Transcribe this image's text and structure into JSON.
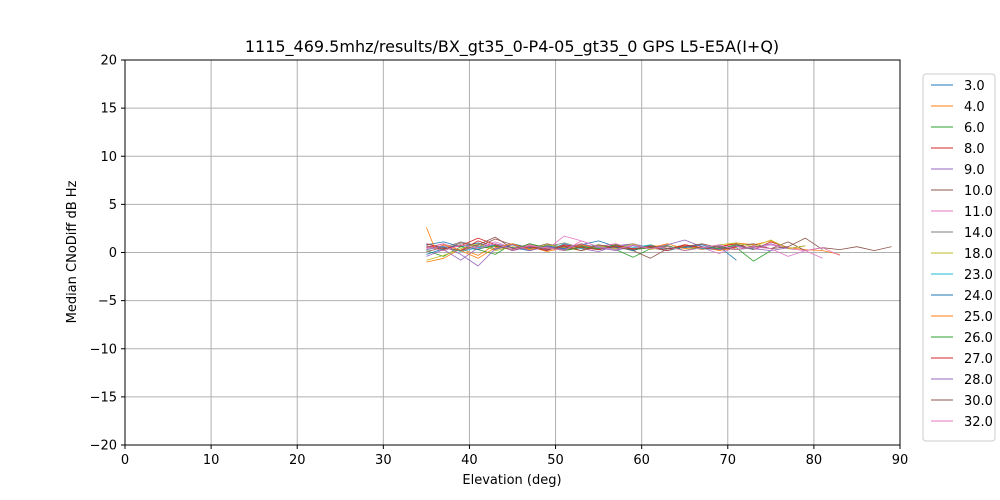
{
  "chart_data": {
    "type": "line",
    "title": "1115_469.5mhz/results/BX_gt35_0-P4-05_gt35_0 GPS L5-E5A(I+Q)",
    "xlabel": "Elevation (deg)",
    "ylabel": "Median CNoDiff dB Hz",
    "xlim": [
      0,
      90
    ],
    "ylim": [
      -20,
      20
    ],
    "xticks": [
      0,
      10,
      20,
      30,
      40,
      50,
      60,
      70,
      80,
      90
    ],
    "yticks": [
      20,
      15,
      10,
      5,
      0,
      -5,
      -10,
      -15,
      -20
    ],
    "grid": true,
    "legend_position": "right",
    "series": [
      {
        "name": "3.0",
        "color": "#1f77b4",
        "x": [
          35,
          37,
          39,
          41,
          43,
          45,
          47,
          49,
          51,
          53,
          55,
          57,
          59,
          61,
          63,
          65,
          67,
          69,
          71
        ],
        "y": [
          0.8,
          1.1,
          0.6,
          1.0,
          0.4,
          0.9,
          0.5,
          0.7,
          0.3,
          0.8,
          1.2,
          0.6,
          0.9,
          0.4,
          0.7,
          0.2,
          0.5,
          0.6,
          -0.8
        ]
      },
      {
        "name": "4.0",
        "color": "#ff7f0e",
        "x": [
          35,
          37,
          39,
          41,
          43,
          45,
          47,
          49,
          51,
          53,
          55,
          57,
          59,
          61,
          63,
          65,
          67,
          69,
          71,
          73,
          75,
          77,
          79,
          81,
          83
        ],
        "y": [
          -1.0,
          -0.6,
          0.4,
          -0.3,
          0.8,
          0.2,
          0.6,
          0.1,
          0.5,
          0.9,
          0.3,
          0.6,
          0.2,
          0.8,
          0.4,
          0.7,
          0.3,
          0.6,
          1.0,
          0.8,
          1.2,
          0.5,
          0.3,
          0.2,
          -0.2
        ]
      },
      {
        "name": "6.0",
        "color": "#2ca02c",
        "x": [
          35,
          37,
          39,
          41,
          43,
          45,
          47,
          49,
          51,
          53,
          55,
          57,
          59,
          61,
          63,
          65,
          67,
          69,
          71,
          73,
          75
        ],
        "y": [
          0.2,
          -0.4,
          0.6,
          0.3,
          -0.2,
          0.9,
          0.4,
          0.7,
          0.2,
          0.5,
          0.8,
          0.3,
          -0.5,
          0.4,
          0.7,
          0.2,
          0.6,
          0.3,
          0.5,
          -0.9,
          0.2
        ]
      },
      {
        "name": "8.0",
        "color": "#d62728",
        "x": [
          35,
          37,
          39,
          41,
          43,
          45,
          47,
          49,
          51,
          53,
          55,
          57,
          59,
          61,
          63,
          65,
          67,
          69,
          71,
          73,
          75,
          77
        ],
        "y": [
          0.5,
          0.9,
          0.2,
          1.2,
          0.6,
          0.3,
          0.9,
          0.4,
          0.7,
          0.2,
          0.6,
          0.9,
          0.3,
          0.5,
          0.2,
          0.8,
          0.4,
          0.6,
          0.9,
          0.3,
          1.1,
          0.5
        ]
      },
      {
        "name": "9.0",
        "color": "#9467bd",
        "x": [
          35,
          37,
          39,
          41,
          43,
          45,
          47,
          49,
          51,
          53,
          55,
          57,
          59,
          61,
          63,
          65,
          67,
          69,
          71,
          73,
          75,
          77,
          79
        ],
        "y": [
          -0.4,
          0.3,
          -0.8,
          0.5,
          0.9,
          0.2,
          0.6,
          0.3,
          0.8,
          0.4,
          0.1,
          0.7,
          0.9,
          0.5,
          0.2,
          0.8,
          0.4,
          0.6,
          0.3,
          0.5,
          0.9,
          0.4,
          0.7
        ]
      },
      {
        "name": "10.0",
        "color": "#8c564b",
        "x": [
          35,
          37,
          39,
          41,
          43,
          45,
          47,
          49,
          51,
          53,
          55,
          57,
          59,
          61,
          63,
          65,
          67,
          69,
          71,
          73,
          75,
          77,
          79,
          81,
          83,
          85,
          87,
          89
        ],
        "y": [
          0.7,
          0.3,
          1.0,
          0.6,
          1.4,
          0.8,
          0.4,
          0.9,
          0.5,
          0.7,
          0.3,
          0.6,
          0.2,
          -0.6,
          0.4,
          0.8,
          0.5,
          0.3,
          0.7,
          0.9,
          0.4,
          1.1,
          0.2,
          0.5,
          0.3,
          0.6,
          0.2,
          0.6
        ]
      },
      {
        "name": "11.0",
        "color": "#e377c2",
        "x": [
          35,
          37,
          39,
          41,
          43,
          45,
          47,
          49,
          51,
          53,
          55,
          57,
          59,
          61,
          63,
          65,
          67,
          69,
          71,
          73,
          75,
          77,
          79,
          81
        ],
        "y": [
          0.4,
          0.9,
          0.2,
          0.6,
          1.1,
          0.5,
          0.8,
          0.3,
          1.7,
          1.2,
          0.6,
          0.9,
          0.4,
          0.7,
          0.2,
          0.8,
          0.5,
          -0.1,
          0.6,
          0.3,
          0.8,
          0.4,
          0.2,
          -0.6
        ]
      },
      {
        "name": "14.0",
        "color": "#7f7f7f",
        "x": [
          35,
          37,
          39,
          41,
          43,
          45,
          47,
          49,
          51,
          53,
          55,
          57,
          59,
          61,
          63,
          65,
          67,
          69,
          71,
          73
        ],
        "y": [
          0.9,
          0.5,
          1.1,
          0.7,
          0.3,
          0.8,
          0.4,
          0.6,
          1.0,
          0.5,
          0.7,
          0.3,
          0.8,
          0.5,
          0.2,
          0.6,
          0.4,
          0.7,
          0.3,
          0.5
        ]
      },
      {
        "name": "18.0",
        "color": "#bcbd22",
        "x": [
          35,
          37,
          39,
          41,
          43,
          45,
          47,
          49,
          51,
          53,
          55,
          57,
          59,
          61,
          63,
          65,
          67,
          69,
          71,
          73,
          75,
          77,
          79
        ],
        "y": [
          -0.8,
          -0.3,
          0.4,
          0.9,
          0.2,
          0.6,
          0.3,
          0.8,
          0.5,
          0.2,
          0.7,
          0.4,
          0.9,
          0.3,
          0.6,
          0.2,
          0.5,
          0.8,
          1.0,
          0.6,
          1.3,
          0.4,
          0.7
        ]
      },
      {
        "name": "23.0",
        "color": "#17becf",
        "x": [
          35,
          37,
          39,
          41,
          43,
          45,
          47,
          49,
          51,
          53,
          55,
          57,
          59,
          61,
          63,
          65,
          67,
          69,
          71
        ],
        "y": [
          0.3,
          0.6,
          0.1,
          0.5,
          0.8,
          0.3,
          0.6,
          0.2,
          0.9,
          0.4,
          0.6,
          0.3,
          0.5,
          0.8,
          0.2,
          0.6,
          0.4,
          0.3,
          0.5
        ]
      },
      {
        "name": "24.0",
        "color": "#1f77b4",
        "x": [
          35,
          37,
          39,
          41,
          43,
          45,
          47,
          49,
          51,
          53,
          55,
          57,
          59,
          61,
          63,
          65,
          67,
          69
        ],
        "y": [
          -0.2,
          0.4,
          0.8,
          0.3,
          0.9,
          0.5,
          0.2,
          0.7,
          0.4,
          0.8,
          0.3,
          0.6,
          0.2,
          0.7,
          0.4,
          0.5,
          0.8,
          0.3
        ]
      },
      {
        "name": "25.0",
        "color": "#ff7f0e",
        "x": [
          35,
          36,
          37,
          39,
          41,
          43,
          45,
          47,
          49,
          51,
          53,
          55,
          57,
          59,
          61,
          63,
          65,
          67,
          69,
          71
        ],
        "y": [
          2.6,
          0.4,
          0.8,
          0.2,
          -0.6,
          0.5,
          0.9,
          0.3,
          0.6,
          0.2,
          0.8,
          0.4,
          0.7,
          0.3,
          0.5,
          0.9,
          0.4,
          0.6,
          0.2,
          0.5
        ]
      },
      {
        "name": "26.0",
        "color": "#2ca02c",
        "x": [
          35,
          37,
          39,
          41,
          43,
          45,
          47,
          49,
          51,
          53,
          55,
          57,
          59,
          61,
          63,
          65,
          67,
          69,
          71,
          73
        ],
        "y": [
          0.6,
          0.2,
          0.8,
          0.4,
          0.7,
          0.3,
          0.9,
          0.5,
          0.2,
          0.6,
          0.4,
          0.8,
          0.3,
          0.5,
          0.7,
          0.2,
          0.6,
          0.4,
          0.8,
          0.3
        ]
      },
      {
        "name": "27.0",
        "color": "#d62728",
        "x": [
          35,
          37,
          39,
          41,
          43,
          45,
          47,
          49,
          51,
          53,
          55,
          57,
          59,
          61,
          63,
          65,
          67,
          69,
          71
        ],
        "y": [
          0.9,
          0.4,
          0.7,
          1.5,
          0.8,
          0.3,
          0.6,
          0.2,
          0.8,
          0.5,
          0.3,
          0.7,
          0.4,
          0.6,
          0.2,
          0.8,
          0.5,
          0.3,
          0.6
        ]
      },
      {
        "name": "28.0",
        "color": "#9467bd",
        "x": [
          35,
          37,
          39,
          41,
          43,
          45,
          47,
          49,
          51,
          53,
          55,
          57,
          59,
          61,
          63,
          65,
          67,
          69,
          71,
          73,
          75,
          77
        ],
        "y": [
          0.3,
          0.7,
          -0.2,
          -1.4,
          0.4,
          0.8,
          0.2,
          0.6,
          0.3,
          0.9,
          0.5,
          0.2,
          0.7,
          0.4,
          0.8,
          1.3,
          0.6,
          0.3,
          0.7,
          0.4,
          0.2,
          0.5
        ]
      },
      {
        "name": "30.0",
        "color": "#8c564b",
        "x": [
          35,
          37,
          39,
          41,
          43,
          45,
          47,
          49,
          51,
          53,
          55,
          57,
          59,
          61,
          63,
          65,
          67,
          69,
          71,
          73,
          75,
          77,
          79,
          81
        ],
        "y": [
          0.1,
          0.5,
          0.2,
          0.8,
          1.6,
          0.4,
          0.7,
          0.3,
          0.6,
          0.2,
          0.8,
          0.5,
          0.3,
          0.7,
          0.4,
          0.6,
          0.9,
          0.5,
          0.3,
          0.7,
          0.4,
          0.6,
          1.5,
          0.3
        ]
      },
      {
        "name": "32.0",
        "color": "#e377c2",
        "x": [
          35,
          37,
          39,
          41,
          43,
          45,
          47,
          49,
          51,
          53,
          55,
          57,
          59,
          61,
          63,
          65,
          67,
          69,
          71,
          73,
          75,
          77,
          79,
          81,
          83
        ],
        "y": [
          0.6,
          0.2,
          0.8,
          0.4,
          0.9,
          0.3,
          0.7,
          0.5,
          0.2,
          1.2,
          0.6,
          0.3,
          0.8,
          0.4,
          0.6,
          0.2,
          0.5,
          0.8,
          0.3,
          0.6,
          0.4,
          -0.4,
          0.2,
          0.5,
          -0.3
        ]
      }
    ]
  }
}
